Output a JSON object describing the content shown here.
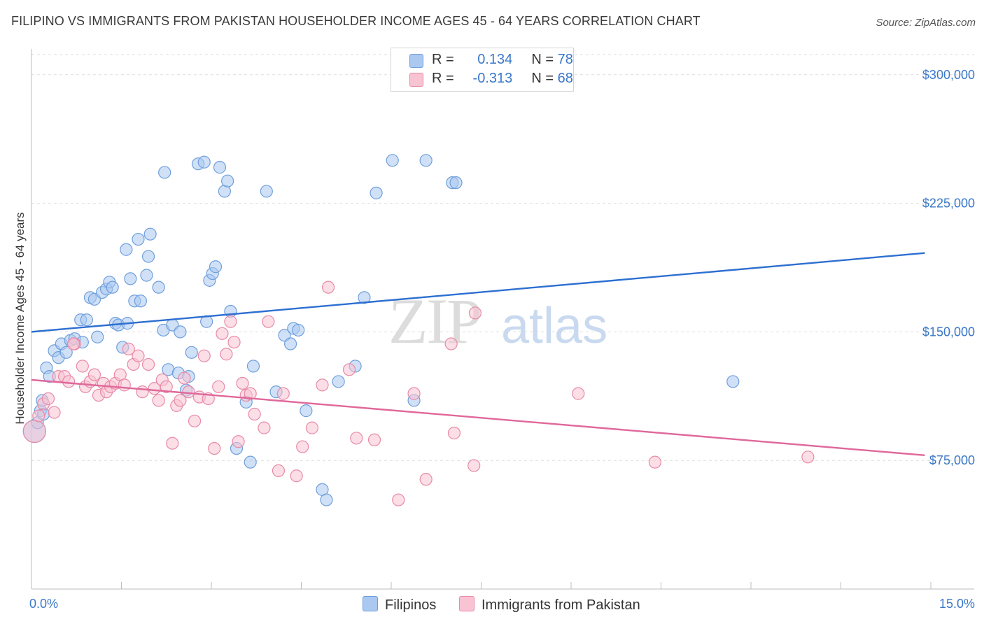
{
  "title": "FILIPINO VS IMMIGRANTS FROM PAKISTAN HOUSEHOLDER INCOME AGES 45 - 64 YEARS CORRELATION CHART",
  "source": "Source: ZipAtlas.com",
  "watermark": {
    "zip": "ZIP",
    "atlas": "atlas"
  },
  "colors": {
    "blue_fill": "#aac8f0",
    "blue_stroke": "#6f9fdc",
    "blue_line": "#2d6fd1",
    "pink_fill": "#f8c3d2",
    "pink_stroke": "#e88aa8",
    "pink_line": "#e0689a",
    "axis_text": "#3b78c8",
    "grid": "#dddddd"
  },
  "legend": {
    "rows": [
      {
        "r_label": "R =",
        "r_value": "0.134",
        "n_label": "N =",
        "n_value": "78"
      },
      {
        "r_label": "R =",
        "r_value": "-0.313",
        "n_label": "N =",
        "n_value": "68"
      }
    ]
  },
  "bottom_legend": [
    "Filipinos",
    "Immigrants from Pakistan"
  ],
  "chart_data": {
    "type": "scatter",
    "ylabel": "Householder Income Ages 45 - 64 years",
    "xlim": [
      0,
      15
    ],
    "ylim": [
      0,
      315000
    ],
    "x_tick_labels": [
      "0.0%",
      "15.0%"
    ],
    "y_ticks": [
      75000,
      150000,
      225000,
      300000
    ],
    "y_tick_labels": [
      "$75,000",
      "$150,000",
      "$225,000",
      "$300,000"
    ],
    "grid": true,
    "series": [
      {
        "name": "Filipinos",
        "trend": {
          "x": [
            0,
            14.9
          ],
          "y": [
            150000,
            196000
          ]
        },
        "points": [
          [
            0.05,
            92000
          ],
          [
            0.1,
            97000
          ],
          [
            0.15,
            104000
          ],
          [
            0.18,
            110000
          ],
          [
            0.25,
            129000
          ],
          [
            0.3,
            124000
          ],
          [
            0.38,
            139000
          ],
          [
            0.45,
            135000
          ],
          [
            0.5,
            143000
          ],
          [
            0.58,
            138000
          ],
          [
            0.65,
            145000
          ],
          [
            0.72,
            146000
          ],
          [
            0.82,
            157000
          ],
          [
            0.92,
            157000
          ],
          [
            0.98,
            170000
          ],
          [
            1.05,
            169000
          ],
          [
            1.1,
            147000
          ],
          [
            1.18,
            173000
          ],
          [
            1.25,
            175000
          ],
          [
            1.3,
            179000
          ],
          [
            1.35,
            176000
          ],
          [
            1.4,
            155000
          ],
          [
            1.45,
            154000
          ],
          [
            1.52,
            141000
          ],
          [
            1.58,
            198000
          ],
          [
            1.6,
            155000
          ],
          [
            1.65,
            181000
          ],
          [
            1.72,
            168000
          ],
          [
            1.78,
            204000
          ],
          [
            1.82,
            168000
          ],
          [
            1.92,
            183000
          ],
          [
            1.95,
            194000
          ],
          [
            1.98,
            207000
          ],
          [
            2.12,
            176000
          ],
          [
            2.2,
            151000
          ],
          [
            2.22,
            243000
          ],
          [
            2.28,
            128000
          ],
          [
            2.35,
            154000
          ],
          [
            2.45,
            126000
          ],
          [
            2.48,
            150000
          ],
          [
            2.58,
            116000
          ],
          [
            2.62,
            124000
          ],
          [
            2.67,
            138000
          ],
          [
            2.78,
            248000
          ],
          [
            2.88,
            249000
          ],
          [
            2.92,
            156000
          ],
          [
            2.97,
            180000
          ],
          [
            3.02,
            184000
          ],
          [
            3.07,
            188000
          ],
          [
            3.14,
            246000
          ],
          [
            3.22,
            232000
          ],
          [
            3.27,
            238000
          ],
          [
            3.32,
            162000
          ],
          [
            3.42,
            82000
          ],
          [
            3.58,
            109000
          ],
          [
            3.65,
            74000
          ],
          [
            3.7,
            130000
          ],
          [
            3.92,
            232000
          ],
          [
            4.08,
            115000
          ],
          [
            4.22,
            148000
          ],
          [
            4.32,
            143000
          ],
          [
            4.37,
            152000
          ],
          [
            4.45,
            151000
          ],
          [
            4.58,
            104000
          ],
          [
            4.85,
            58000
          ],
          [
            4.92,
            52000
          ],
          [
            5.12,
            121000
          ],
          [
            5.4,
            130000
          ],
          [
            5.55,
            170000
          ],
          [
            5.75,
            231000
          ],
          [
            6.02,
            250000
          ],
          [
            6.38,
            110000
          ],
          [
            6.58,
            250000
          ],
          [
            7.02,
            237000
          ],
          [
            7.08,
            237000
          ],
          [
            11.7,
            121000
          ],
          [
            0.2,
            102000
          ],
          [
            0.85,
            144000
          ]
        ]
      },
      {
        "name": "Immigrants from Pakistan",
        "trend": {
          "x": [
            0,
            14.9
          ],
          "y": [
            122000,
            78000
          ]
        },
        "points": [
          [
            0.05,
            92000
          ],
          [
            0.12,
            101000
          ],
          [
            0.2,
            108000
          ],
          [
            0.28,
            111000
          ],
          [
            0.38,
            103000
          ],
          [
            0.45,
            124000
          ],
          [
            0.55,
            124000
          ],
          [
            0.62,
            121000
          ],
          [
            0.72,
            143000
          ],
          [
            0.85,
            130000
          ],
          [
            0.9,
            118000
          ],
          [
            0.98,
            121000
          ],
          [
            1.05,
            125000
          ],
          [
            1.12,
            113000
          ],
          [
            1.2,
            120000
          ],
          [
            1.25,
            115000
          ],
          [
            1.32,
            118000
          ],
          [
            1.4,
            120000
          ],
          [
            1.48,
            125000
          ],
          [
            1.55,
            119000
          ],
          [
            1.62,
            140000
          ],
          [
            1.7,
            131000
          ],
          [
            1.78,
            136000
          ],
          [
            1.85,
            115000
          ],
          [
            1.95,
            131000
          ],
          [
            2.05,
            117000
          ],
          [
            2.12,
            110000
          ],
          [
            2.18,
            122000
          ],
          [
            2.25,
            118000
          ],
          [
            2.35,
            85000
          ],
          [
            2.42,
            107000
          ],
          [
            2.48,
            110000
          ],
          [
            2.55,
            123000
          ],
          [
            2.62,
            115000
          ],
          [
            2.72,
            98000
          ],
          [
            2.8,
            112000
          ],
          [
            2.88,
            136000
          ],
          [
            2.95,
            111000
          ],
          [
            3.05,
            82000
          ],
          [
            3.12,
            118000
          ],
          [
            3.18,
            149000
          ],
          [
            3.25,
            137000
          ],
          [
            3.32,
            156000
          ],
          [
            3.38,
            144000
          ],
          [
            3.45,
            86000
          ],
          [
            3.52,
            120000
          ],
          [
            3.58,
            113000
          ],
          [
            3.65,
            114000
          ],
          [
            3.72,
            102000
          ],
          [
            3.88,
            94000
          ],
          [
            3.95,
            156000
          ],
          [
            4.12,
            69000
          ],
          [
            4.2,
            114000
          ],
          [
            4.42,
            66000
          ],
          [
            4.52,
            83000
          ],
          [
            4.68,
            94000
          ],
          [
            4.85,
            119000
          ],
          [
            4.95,
            176000
          ],
          [
            5.3,
            128000
          ],
          [
            5.42,
            88000
          ],
          [
            5.72,
            87000
          ],
          [
            6.12,
            52000
          ],
          [
            6.38,
            114000
          ],
          [
            6.58,
            64000
          ],
          [
            7.05,
            91000
          ],
          [
            7.38,
            72000
          ],
          [
            9.12,
            114000
          ],
          [
            12.95,
            77000
          ]
        ],
        "extra_points": [
          [
            7.4,
            161000
          ],
          [
            7.0,
            143000
          ],
          [
            10.4,
            74000
          ],
          [
            0.7,
            143000
          ]
        ]
      }
    ]
  }
}
